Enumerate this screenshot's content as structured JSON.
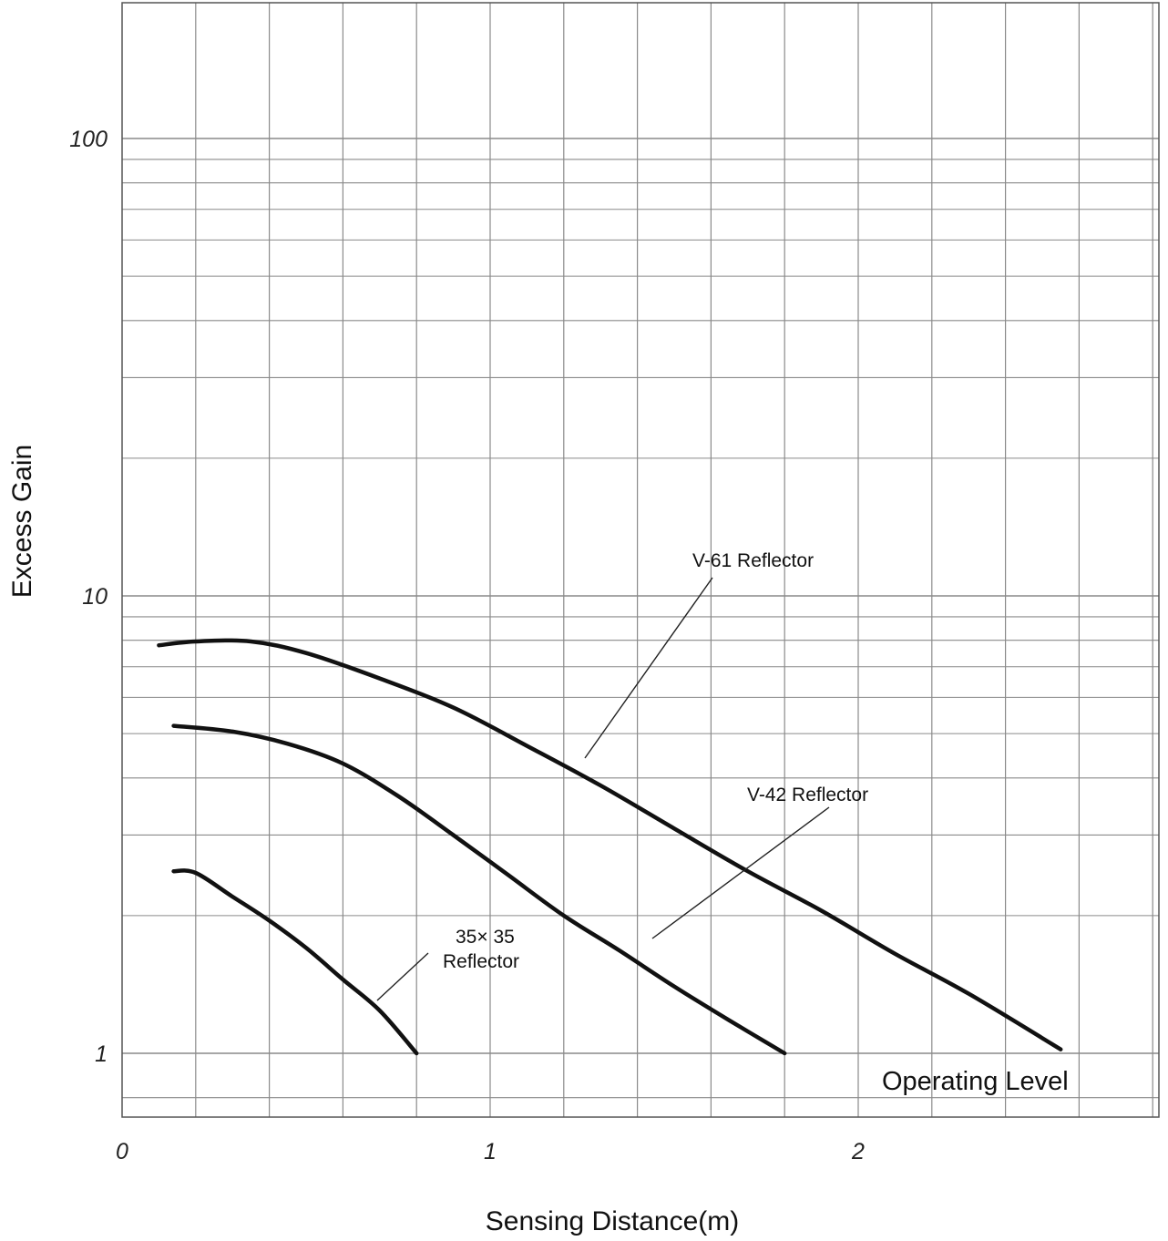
{
  "chart_data": {
    "type": "line",
    "xlabel": "Sensing Distance(m)",
    "ylabel": "Excess Gain",
    "xlim": [
      0,
      2.8
    ],
    "ylim": [
      0.7,
      200
    ],
    "yscale": "log",
    "grid": true,
    "x_ticks": [
      0,
      1,
      2
    ],
    "x_tick_labels": [
      "0",
      "1",
      "2"
    ],
    "y_ticks": [
      1,
      10,
      100
    ],
    "y_tick_labels": [
      "1",
      "10",
      "100"
    ],
    "series": [
      {
        "name": "V-61 Reflector",
        "points": [
          [
            0.1,
            7.8
          ],
          [
            0.2,
            7.95
          ],
          [
            0.35,
            7.95
          ],
          [
            0.5,
            7.5
          ],
          [
            0.7,
            6.6
          ],
          [
            0.9,
            5.7
          ],
          [
            1.1,
            4.7
          ],
          [
            1.3,
            3.85
          ],
          [
            1.5,
            3.1
          ],
          [
            1.7,
            2.5
          ],
          [
            1.9,
            2.05
          ],
          [
            2.1,
            1.65
          ],
          [
            2.3,
            1.35
          ],
          [
            2.55,
            1.02
          ]
        ]
      },
      {
        "name": "V-42  Reflector",
        "points": [
          [
            0.14,
            5.2
          ],
          [
            0.3,
            5.05
          ],
          [
            0.45,
            4.75
          ],
          [
            0.6,
            4.3
          ],
          [
            0.75,
            3.65
          ],
          [
            0.9,
            3.0
          ],
          [
            1.05,
            2.45
          ],
          [
            1.2,
            2.0
          ],
          [
            1.35,
            1.68
          ],
          [
            1.5,
            1.4
          ],
          [
            1.65,
            1.18
          ],
          [
            1.8,
            1.0
          ]
        ]
      },
      {
        "name": "35×35 Reflector",
        "points": [
          [
            0.14,
            2.5
          ],
          [
            0.2,
            2.48
          ],
          [
            0.3,
            2.2
          ],
          [
            0.4,
            1.95
          ],
          [
            0.5,
            1.7
          ],
          [
            0.6,
            1.45
          ],
          [
            0.7,
            1.24
          ],
          [
            0.8,
            1.0
          ]
        ]
      }
    ],
    "annotations": {
      "v61": "V-61 Reflector",
      "v42": "V-42  Reflector",
      "r35_line1": "35× 35",
      "r35_line2": "Reflector",
      "operating_level": "Operating Level"
    }
  }
}
